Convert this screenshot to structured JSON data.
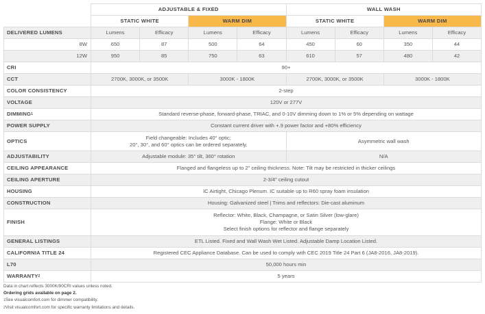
{
  "header": {
    "group_adjustable": "ADJUSTABLE & FIXED",
    "group_wallwash": "WALL WASH",
    "static_white": "STATIC WHITE",
    "warm_dim": "WARM DIM",
    "warm_color": "#f9b84a"
  },
  "lumens": {
    "label": "DELIVERED LUMENS",
    "col_lumens": "Lumens",
    "col_efficacy": "Efficacy",
    "rows": [
      {
        "watt": "8W",
        "values": [
          "650",
          "87",
          "500",
          "64",
          "450",
          "60",
          "350",
          "44"
        ]
      },
      {
        "watt": "12W",
        "values": [
          "950",
          "85",
          "750",
          "63",
          "610",
          "57",
          "480",
          "42"
        ]
      }
    ]
  },
  "specs": {
    "cri": {
      "label": "CRI",
      "value": "90+"
    },
    "cct": {
      "label": "CCT",
      "static": "2700K, 3000K, or 3500K",
      "warm": "3000K - 1800K"
    },
    "color_consistency": {
      "label": "COLOR CONSISTENCY",
      "value": "2-step"
    },
    "voltage": {
      "label": "VOLTAGE",
      "value": "120V or 277V"
    },
    "dimming": {
      "label": "DIMMING",
      "sup": "1",
      "value": "Standard reverse-phase, forward-phase, TRIAC, and 0-10V dimming down to 1% or 5% depending on wattage"
    },
    "power_supply": {
      "label": "POWER SUPPLY",
      "value": "Constant current driver with +.9 power factor and +80% efficiency"
    },
    "optics": {
      "label": "OPTICS",
      "adjustable_line1": "Field changeable: Includes 40° optic;",
      "adjustable_line2": "20°,  30°, and 60° optics can be ordered separately.",
      "wallwash": "Asymmetric wall wash"
    },
    "adjustability": {
      "label": "ADJUSTABILITY",
      "adjustable": "Adjustable module: 35° tilt, 360° rotation",
      "wallwash": "N/A"
    },
    "ceiling_appearance": {
      "label": "CEILING APPEARANCE",
      "value": "Flanged and flangeless up to 2\" ceiling thickness. Note: Tilt may be restricted in thicker ceilings"
    },
    "ceiling_aperture": {
      "label": "CEILING APERTURE",
      "value": "2-3/4\" ceiling cutout"
    },
    "housing": {
      "label": "HOUSING",
      "value": "IC Airtight, Chicago Plenum. IC suitable up to R60 spray foam insulation"
    },
    "construction": {
      "label": "CONSTRUCTION",
      "value": "Housing: Galvanized steel | Trims and reflectors: Die-cast aluminum"
    },
    "finish": {
      "label": "FINISH",
      "line1": "Reflector: White, Black, Champagne, or Satin Silver (low-glare)",
      "line2": "Flange: White or Black",
      "line3": "Select finish options for reflector and flange separately"
    },
    "general_listings": {
      "label": "GENERAL LISTINGS",
      "value": "ETL Listed. Fixed and Wall Wash Wet Listed. Adjustable Damp Location Listed."
    },
    "california": {
      "label": "CALIFORNIA TITLE 24",
      "value": "Registered CEC Appliance Database. Can be used to comply with CEC 2019 Title 24 Part 6 (JA8-2016, JA8-2019)."
    },
    "l70": {
      "label": "L70",
      "value": "50,000 hours min"
    },
    "warranty": {
      "label": "WARRANTY",
      "sup": "2",
      "value": "5 years"
    }
  },
  "notes": {
    "line1": "Data in chart reflects 3000K/90CRI values unless noted.",
    "line2": "Ordering grids available on page 2.",
    "fn1_mark": "1",
    "fn1": "See visualcomfort.com for dimmer compatibility.",
    "fn2_mark": "2",
    "fn2": "Visit visualcomfort.com for specific warranty limitations and details."
  }
}
